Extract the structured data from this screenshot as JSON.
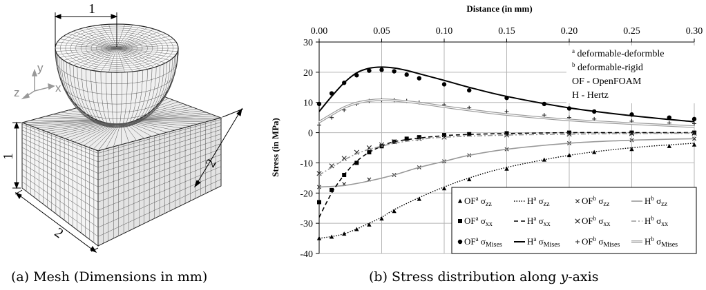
{
  "mesh_panel": {
    "caption": "(a) Mesh (Dimensions in mm)",
    "dim_top": "1",
    "dim_height": "1",
    "dim_right": "2",
    "dim_bottom": "2",
    "axis_y": "y",
    "axis_x": "x",
    "axis_z": "z"
  },
  "chart_panel": {
    "caption_prefix": "(b) Stress distribution along ",
    "caption_var": "y",
    "caption_suffix": "-axis",
    "annotations": [
      {
        "sup": "a",
        "text": " deformable-deformble"
      },
      {
        "sup": "b",
        "text": " deformable-rigid"
      },
      {
        "sup": "",
        "text": "OF - OpenFOAM"
      },
      {
        "sup": "",
        "text": "H - Hertz"
      }
    ]
  },
  "chart_data": {
    "type": "scatter",
    "xlabel": "Distance (in mm)",
    "ylabel": "Stress (in MPa)",
    "xlim": [
      0,
      0.3
    ],
    "ylim": [
      -40,
      30
    ],
    "xticks": [
      "0.00",
      "0.05",
      "0.10",
      "0.15",
      "0.20",
      "0.25",
      "0.30"
    ],
    "yticks": [
      "30",
      "20",
      "10",
      "0",
      "-10",
      "-20",
      "-30",
      "-40"
    ],
    "x_axis_position": "top",
    "grid": true,
    "legend_position": "bottom-right",
    "series": [
      {
        "name": "OFa σzz",
        "style": "triangle",
        "x": [
          0,
          0.01,
          0.02,
          0.03,
          0.04,
          0.05,
          0.06,
          0.08,
          0.1,
          0.12,
          0.15,
          0.18,
          0.2,
          0.22,
          0.25,
          0.28,
          0.3
        ],
        "y": [
          -35,
          -34.5,
          -33.5,
          -32,
          -30.5,
          -28.5,
          -26,
          -22,
          -18.5,
          -15.5,
          -12,
          -9,
          -7.5,
          -6.5,
          -5.5,
          -4.5,
          -4
        ]
      },
      {
        "name": "Ha σzz",
        "style": "dotted",
        "x": [
          0,
          0.02,
          0.04,
          0.05,
          0.06,
          0.08,
          0.1,
          0.12,
          0.15,
          0.2,
          0.25,
          0.3
        ],
        "y": [
          -35,
          -33.5,
          -30,
          -28,
          -25.5,
          -21.5,
          -18,
          -15,
          -11.5,
          -7.5,
          -5,
          -3.5
        ]
      },
      {
        "name": "OFb σzz",
        "style": "x-small",
        "x": [
          0,
          0.02,
          0.04,
          0.06,
          0.08,
          0.1,
          0.12,
          0.15,
          0.2,
          0.25,
          0.3
        ],
        "y": [
          -18,
          -17,
          -15.5,
          -14,
          -11.5,
          -9.5,
          -7.5,
          -5.5,
          -3.5,
          -2.5,
          -2
        ]
      },
      {
        "name": "Hb σzz",
        "style": "solid-gray",
        "x": [
          0,
          0.02,
          0.04,
          0.06,
          0.08,
          0.1,
          0.12,
          0.15,
          0.2,
          0.25,
          0.3
        ],
        "y": [
          -18,
          -17.5,
          -16,
          -14,
          -11.5,
          -9.5,
          -7.5,
          -5.5,
          -3.5,
          -2.5,
          -2
        ]
      },
      {
        "name": "OFa σxx",
        "style": "square",
        "x": [
          0,
          0.01,
          0.02,
          0.03,
          0.04,
          0.05,
          0.06,
          0.07,
          0.08,
          0.1,
          0.12,
          0.15,
          0.2,
          0.25,
          0.3
        ],
        "y": [
          -23,
          -19,
          -14,
          -10,
          -6.5,
          -4.5,
          -3,
          -2,
          -1.5,
          -0.8,
          -0.5,
          -0.2,
          0,
          0,
          0
        ]
      },
      {
        "name": "Ha σxx",
        "style": "dashed",
        "x": [
          0,
          0.01,
          0.02,
          0.03,
          0.04,
          0.05,
          0.06,
          0.08,
          0.1,
          0.12,
          0.15,
          0.2,
          0.25,
          0.3
        ],
        "y": [
          -28,
          -20,
          -14,
          -9.5,
          -6.5,
          -4.5,
          -3,
          -1.8,
          -1,
          -0.6,
          -0.3,
          0,
          0,
          0
        ]
      },
      {
        "name": "OFb σxx",
        "style": "x",
        "x": [
          0,
          0.01,
          0.02,
          0.03,
          0.04,
          0.05,
          0.06,
          0.08,
          0.1,
          0.15,
          0.2,
          0.25,
          0.3
        ],
        "y": [
          -13.5,
          -11,
          -8.5,
          -6.5,
          -5,
          -4,
          -3,
          -2,
          -1.5,
          -0.8,
          -0.5,
          -0.3,
          -0.2
        ]
      },
      {
        "name": "Hb σxx",
        "style": "dashdot-gray",
        "x": [
          0,
          0.01,
          0.02,
          0.03,
          0.04,
          0.05,
          0.06,
          0.08,
          0.1,
          0.15,
          0.2,
          0.25,
          0.3
        ],
        "y": [
          -14,
          -11.5,
          -9,
          -7,
          -5.5,
          -4.5,
          -3.5,
          -2.3,
          -1.5,
          -0.8,
          -0.5,
          -0.3,
          -0.2
        ]
      },
      {
        "name": "OFa σMises",
        "style": "circle",
        "x": [
          0,
          0.01,
          0.02,
          0.03,
          0.04,
          0.05,
          0.06,
          0.07,
          0.08,
          0.1,
          0.12,
          0.15,
          0.18,
          0.2,
          0.22,
          0.25,
          0.28,
          0.3
        ],
        "y": [
          9.5,
          13,
          16.5,
          19,
          20.5,
          20.8,
          20.3,
          19.2,
          18,
          16,
          14,
          11.5,
          9.5,
          8,
          7,
          6,
          5,
          4.5
        ]
      },
      {
        "name": "Ha σMises",
        "style": "solid",
        "x": [
          0,
          0.01,
          0.02,
          0.03,
          0.04,
          0.05,
          0.06,
          0.07,
          0.08,
          0.1,
          0.12,
          0.15,
          0.2,
          0.25,
          0.3
        ],
        "y": [
          7,
          12,
          16.5,
          19.8,
          21.3,
          21.7,
          21.4,
          20.6,
          19.5,
          17.3,
          15,
          12,
          8.2,
          5.6,
          3.6
        ]
      },
      {
        "name": "OFb σMises",
        "style": "plus",
        "x": [
          0,
          0.01,
          0.02,
          0.03,
          0.04,
          0.05,
          0.06,
          0.07,
          0.08,
          0.1,
          0.12,
          0.15,
          0.18,
          0.2,
          0.22,
          0.25,
          0.28,
          0.3
        ],
        "y": [
          2.5,
          5,
          7.5,
          9.5,
          10.5,
          10.8,
          10.8,
          10.5,
          10,
          9.2,
          8.2,
          7,
          5.8,
          5,
          4.5,
          3.8,
          3.2,
          3
        ]
      },
      {
        "name": "Hb σMises",
        "style": "double-gray",
        "x": [
          0,
          0.01,
          0.02,
          0.03,
          0.04,
          0.05,
          0.06,
          0.08,
          0.1,
          0.12,
          0.15,
          0.2,
          0.25,
          0.3
        ],
        "y": [
          3.5,
          6,
          8.3,
          9.8,
          10.6,
          10.9,
          10.7,
          9.8,
          8.6,
          7.5,
          6,
          4.2,
          3,
          2
        ]
      }
    ]
  }
}
